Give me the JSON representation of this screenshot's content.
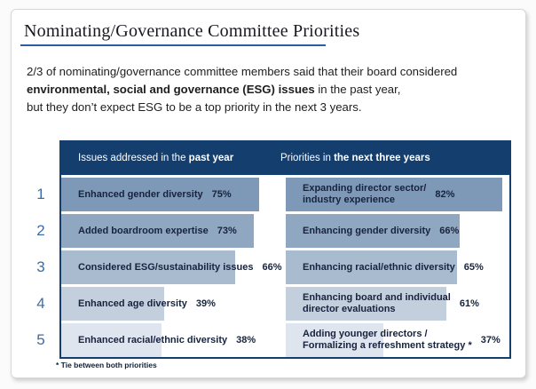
{
  "title": "Nominating/Governance Committee Priorities",
  "intro": {
    "line1": "2/3 of nominating/governance committee members said that their board considered",
    "line2_bold": "environmental, social and governance (ESG) issues",
    "line2_rest": " in the past year,",
    "line3": "but they don’t expect ESG to be a top priority in the next 3 years."
  },
  "table": {
    "left_header_normal": "Issues addressed in the ",
    "left_header_bold": "past year",
    "right_header_normal": "Priorities in ",
    "right_header_bold": "the next three years",
    "rows": [
      {
        "rank": "1",
        "left": {
          "label": "Enhanced gender diversity",
          "pct": "75%",
          "value": 75
        },
        "right": {
          "label": "Expanding director sector/\nindustry experience",
          "pct": "82%",
          "value": 82
        }
      },
      {
        "rank": "2",
        "left": {
          "label": "Added boardroom expertise",
          "pct": "73%",
          "value": 73
        },
        "right": {
          "label": "Enhancing gender diversity",
          "pct": "66%",
          "value": 66
        }
      },
      {
        "rank": "3",
        "left": {
          "label": "Considered ESG/sustainability issues",
          "pct": "66%",
          "value": 66
        },
        "right": {
          "label": "Enhancing racial/ethnic diversity",
          "pct": "65%",
          "value": 65
        }
      },
      {
        "rank": "4",
        "left": {
          "label": "Enhanced age diversity",
          "pct": "39%",
          "value": 39
        },
        "right": {
          "label": "Enhancing board and individual\ndirector evaluations",
          "pct": "61%",
          "value": 61
        }
      },
      {
        "rank": "5",
        "left": {
          "label": "Enhanced racial/ethnic diversity",
          "pct": "38%",
          "value": 38
        },
        "right": {
          "label": "Adding younger directors /\nFormalizing a refreshment strategy *",
          "pct": "37%",
          "value": 37
        }
      }
    ]
  },
  "footnote": "* Tie between both priorities",
  "colors": {
    "header_navy": "#143e6d",
    "title_underline": "#2d5d9e",
    "rank_blue": "#3c6ca8",
    "bar_text": "#17233e",
    "bar_shades": [
      "#7e99b7",
      "#90a7c1",
      "#a9bccf",
      "#c3cfdd",
      "#dfe5ee"
    ]
  },
  "chart_data": {
    "type": "bar",
    "orientation": "horizontal",
    "unit": "%",
    "title": "Nominating/Governance Committee Priorities",
    "subtitle": "2/3 of nominating/governance committee members said that their board considered environmental, social and governance (ESG) issues in the past year, but they don’t expect ESG to be a top priority in the next 3 years.",
    "series": [
      {
        "name": "Issues addressed in the past year",
        "categories": [
          "Enhanced gender diversity",
          "Added boardroom expertise",
          "Considered ESG/sustainability issues",
          "Enhanced age diversity",
          "Enhanced racial/ethnic diversity"
        ],
        "values": [
          75,
          73,
          66,
          39,
          38
        ]
      },
      {
        "name": "Priorities in the next three years",
        "categories": [
          "Expanding director sector/industry experience",
          "Enhancing gender diversity",
          "Enhancing racial/ethnic diversity",
          "Enhancing board and individual director evaluations",
          "Adding younger directors / Formalizing a refreshment strategy *"
        ],
        "values": [
          82,
          66,
          65,
          61,
          37
        ]
      }
    ],
    "ranks": [
      1,
      2,
      3,
      4,
      5
    ],
    "xlim": [
      0,
      100
    ],
    "footnote": "* Tie between both priorities"
  }
}
